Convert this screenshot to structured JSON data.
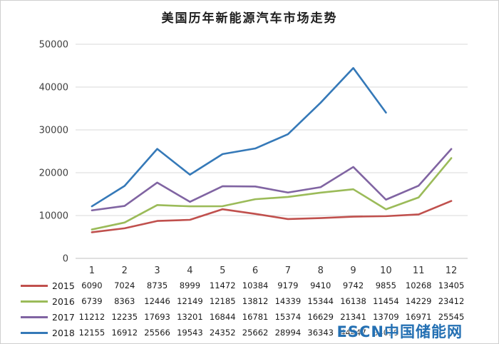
{
  "watermark": "ESCN中国储能网",
  "chart_data": {
    "type": "line",
    "title": "美国历年新能源汽车市场走势",
    "xlabel": "",
    "ylabel": "",
    "categories": [
      "1",
      "2",
      "3",
      "4",
      "5",
      "6",
      "7",
      "8",
      "9",
      "10",
      "11",
      "12"
    ],
    "ylim": [
      0,
      50000
    ],
    "ytick_interval": 10000,
    "yticks": [
      0,
      10000,
      20000,
      30000,
      40000,
      50000
    ],
    "grid": true,
    "legend_position": "table-left",
    "colors": {
      "grid": "#d9d9d9",
      "axis": "#bfbfbf",
      "axis_text": "#404040"
    },
    "series": [
      {
        "name": "2015",
        "color": "#c0504d",
        "values": [
          6090,
          7024,
          8735,
          8999,
          11472,
          10384,
          9179,
          9410,
          9742,
          9855,
          10268,
          13405
        ]
      },
      {
        "name": "2016",
        "color": "#9bbb59",
        "values": [
          6739,
          8363,
          12446,
          12149,
          12185,
          13812,
          14339,
          15344,
          16138,
          11454,
          14229,
          23412
        ]
      },
      {
        "name": "2017",
        "color": "#8064a2",
        "values": [
          11212,
          12235,
          17693,
          13201,
          16844,
          16781,
          15374,
          16629,
          21341,
          13709,
          16971,
          25545
        ]
      },
      {
        "name": "2018",
        "color": "#3579b8",
        "values": [
          12155,
          16912,
          25566,
          19543,
          24352,
          25662,
          28994,
          36343,
          44447,
          34039
        ]
      }
    ]
  }
}
